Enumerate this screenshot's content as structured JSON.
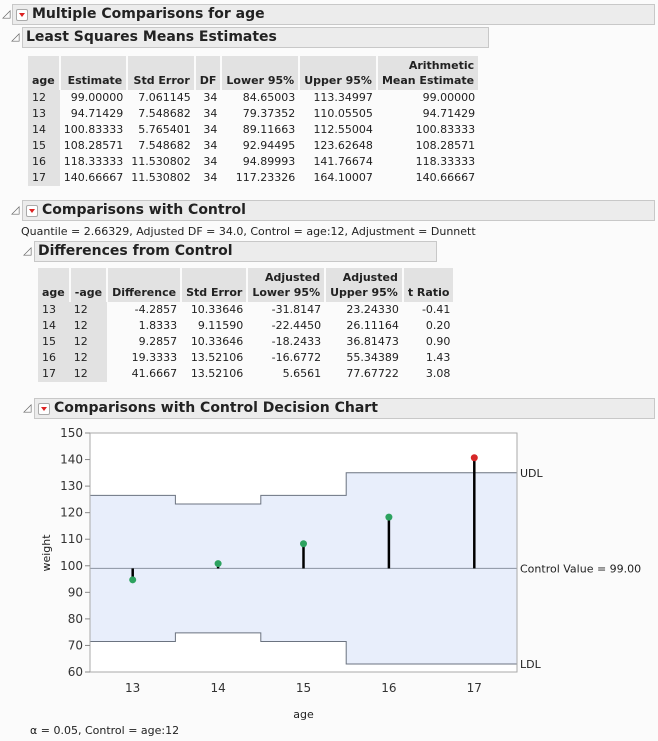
{
  "main_title": "Multiple Comparisons for age",
  "lsm": {
    "title": "Least Squares Means Estimates",
    "headers": [
      [
        "",
        "age"
      ],
      [
        "",
        "Estimate"
      ],
      [
        "",
        "Std Error"
      ],
      [
        "",
        "DF"
      ],
      [
        "",
        "Lower 95%"
      ],
      [
        "",
        "Upper 95%"
      ],
      [
        "Arithmetic",
        "Mean Estimate"
      ]
    ],
    "rows": [
      [
        "12",
        "99.00000",
        "7.061145",
        "34",
        "84.65003",
        "113.34997",
        "99.00000"
      ],
      [
        "13",
        "94.71429",
        "7.548682",
        "34",
        "79.37352",
        "110.05505",
        "94.71429"
      ],
      [
        "14",
        "100.83333",
        "5.765401",
        "34",
        "89.11663",
        "112.55004",
        "100.83333"
      ],
      [
        "15",
        "108.28571",
        "7.548682",
        "34",
        "92.94495",
        "123.62648",
        "108.28571"
      ],
      [
        "16",
        "118.33333",
        "11.530802",
        "34",
        "94.89993",
        "141.76674",
        "118.33333"
      ],
      [
        "17",
        "140.66667",
        "11.530802",
        "34",
        "117.23326",
        "164.10007",
        "140.66667"
      ]
    ]
  },
  "cwc": {
    "title": "Comparisons with Control",
    "info": "Quantile = 2.66329, Adjusted DF = 34.0, Control = age:12, Adjustment = Dunnett"
  },
  "diff": {
    "title": "Differences from Control",
    "headers": [
      [
        "",
        "age"
      ],
      [
        "",
        "-age"
      ],
      [
        "",
        "Difference"
      ],
      [
        "",
        "Std Error"
      ],
      [
        "Adjusted",
        "Lower 95%"
      ],
      [
        "Adjusted",
        "Upper 95%"
      ],
      [
        "",
        "t Ratio"
      ]
    ],
    "rows": [
      [
        "13",
        "12",
        "-4.2857",
        "10.33646",
        "-31.8147",
        "23.24330",
        "-0.41"
      ],
      [
        "14",
        "12",
        "1.8333",
        "9.11590",
        "-22.4450",
        "26.11164",
        "0.20"
      ],
      [
        "15",
        "12",
        "9.2857",
        "10.33646",
        "-18.2433",
        "36.81473",
        "0.90"
      ],
      [
        "16",
        "12",
        "19.3333",
        "13.52106",
        "-16.6772",
        "55.34389",
        "1.43"
      ],
      [
        "17",
        "12",
        "41.6667",
        "13.52106",
        "5.6561",
        "77.67722",
        "3.08"
      ]
    ]
  },
  "decision": {
    "title": "Comparisons with Control Decision Chart",
    "footer": "α = 0.05, Control = age:12"
  },
  "chart_data": {
    "type": "line",
    "xlabel": "age",
    "ylabel": "weight",
    "ylim": [
      60,
      150
    ],
    "yticks": [
      "60",
      "70",
      "80",
      "90",
      "100",
      "110",
      "120",
      "130",
      "140",
      "150"
    ],
    "categories": [
      "13",
      "14",
      "15",
      "16",
      "17"
    ],
    "values": [
      94.71429,
      100.83333,
      108.28571,
      118.33333,
      140.66667
    ],
    "udl": [
      126.53,
      123.28,
      126.53,
      135.01,
      135.01
    ],
    "ldl": [
      71.47,
      74.72,
      71.47,
      62.99,
      62.99
    ],
    "control": 99.0,
    "labels": {
      "udl": "UDL",
      "ldl": "LDL",
      "control": "Control Value = 99.00"
    },
    "colors": {
      "in": "#2ca25f",
      "out": "#d62728",
      "band": "#e8eefb"
    }
  }
}
